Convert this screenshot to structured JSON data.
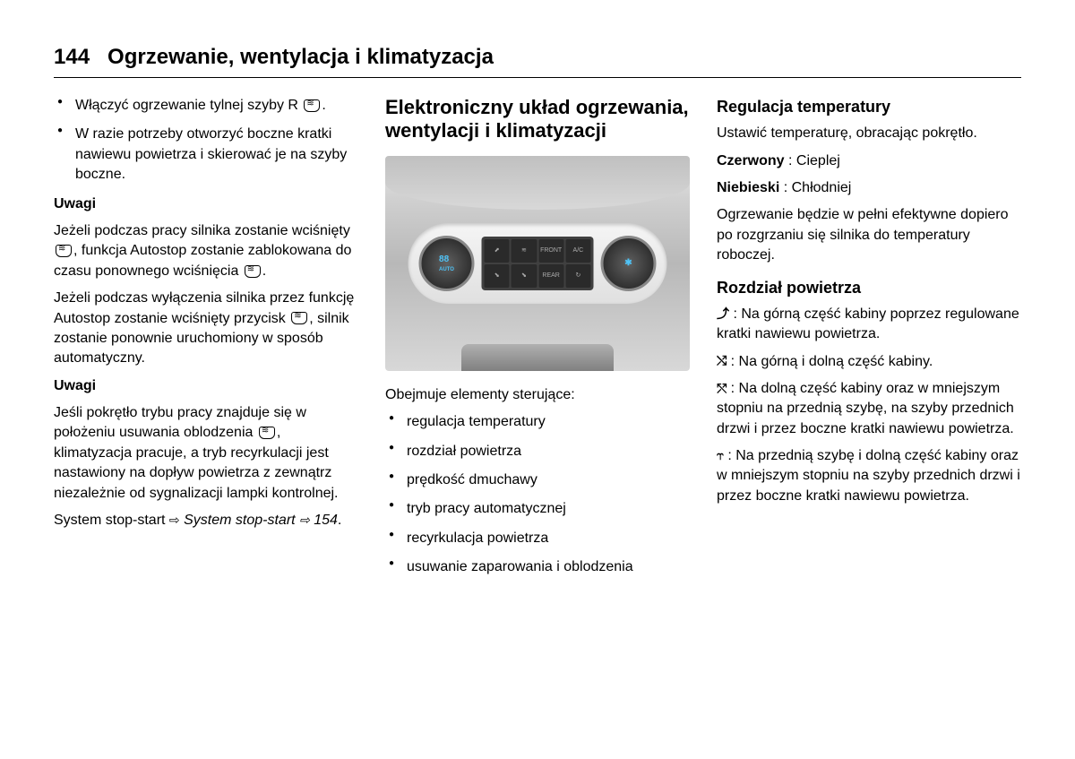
{
  "header": {
    "page_number": "144",
    "title": "Ogrzewanie, wentylacja i klimatyzacja"
  },
  "col1": {
    "bullet1_pre": "Włączyć ogrzewanie tylnej szyby R ",
    "bullet1_post": ".",
    "bullet2": "W razie potrzeby otworzyć boczne kratki nawiewu powietrza i skierować je na szyby boczne.",
    "note_label": "Uwagi",
    "note1_a": "Jeżeli podczas pracy silnika zostanie wciśnięty ",
    "note1_b": ", funkcja Autostop zostanie zablokowana do czasu ponownego wciśnięcia ",
    "note1_c": ".",
    "note2_a": "Jeżeli podczas wyłączenia silnika przez funkcję Autostop zostanie wciśnięty przycisk ",
    "note2_b": ", silnik zostanie ponownie uruchomiony w sposób automatyczny.",
    "note_label2": "Uwagi",
    "note3_a": "Jeśli pokrętło trybu pracy znajduje się w położeniu usuwania oblodzenia ",
    "note3_b": ", klimatyzacja pracuje, a tryb recyrkulacji jest nastawiony na dopływ powietrza z zewnątrz niezależnie od sygnalizacji lampki kontrolnej.",
    "stopstart_a": "System stop-start ",
    "stopstart_italic": "System stop-start",
    "stopstart_ref": " 154",
    "stopstart_end": "."
  },
  "col2": {
    "title": "Elektroniczny układ ogrzewania, wentylacji i klimatyzacji",
    "intro": "Obejmuje elementy sterujące:",
    "items": [
      "regulacja temperatury",
      "rozdział powietrza",
      "prędkość dmuchawy",
      "tryb pracy automatycznej",
      "recyrkulacja powietrza",
      "usuwanie zaparowania i oblodzenia"
    ],
    "dial_left": "88",
    "dial_left_sub": "AUTO",
    "dial_right": "✱"
  },
  "col3": {
    "temp_title": "Regulacja temperatury",
    "temp_text": "Ustawić temperaturę, obracając pokrętło.",
    "red_label": "Czerwony",
    "red_value": "Cieplej",
    "blue_label": "Niebieski",
    "blue_value": "Chłodniej",
    "temp_note": "Ogrzewanie będzie w pełni efektywne dopiero po rozgrzaniu się silnika do temperatury roboczej.",
    "air_title": "Rozdział powietrza",
    "air1": "Na górną część kabiny poprzez regulowane kratki nawiewu powietrza.",
    "air2": "Na górną i dolną część kabiny.",
    "air3": "Na dolną część kabiny oraz w mniejszym stopniu na przednią szybę, na szyby przednich drzwi i przez boczne kratki nawiewu powietrza.",
    "air4": "Na przednią szybę i dolną część kabiny oraz w mniejszym stopniu na szyby przednich drzwi i przez boczne kratki nawiewu powietrza."
  }
}
